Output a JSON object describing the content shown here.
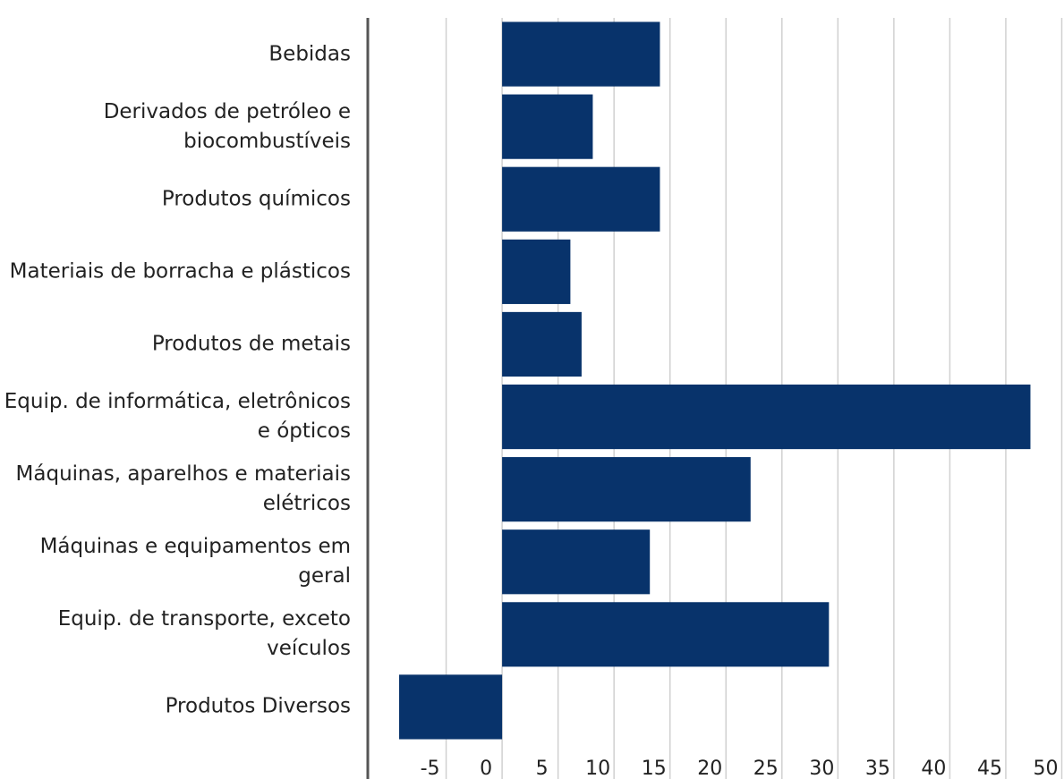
{
  "chart_data": {
    "type": "barh",
    "categories": [
      "Bebidas",
      "Derivados de petróleo e biocombustíveis",
      "Produtos químicos",
      "Materiais de borracha e plásticos",
      "Produtos de metais",
      "Equip. de informática, eletrônicos e ópticos",
      "Máquinas, aparelhos e materiais elétricos",
      "Máquinas e equipamentos em geral",
      "Equip. de transporte, exceto veículos",
      "Produtos Diversos"
    ],
    "values": [
      14.1,
      8.1,
      14.1,
      6.1,
      7.1,
      47.2,
      22.2,
      13.2,
      29.2,
      -9.2
    ],
    "color": "#08336b",
    "xlim": [
      -12,
      50.2
    ],
    "xticks": [
      -5,
      0,
      5,
      10,
      15,
      20,
      25,
      30,
      35,
      40,
      45,
      50
    ],
    "grid": true
  }
}
